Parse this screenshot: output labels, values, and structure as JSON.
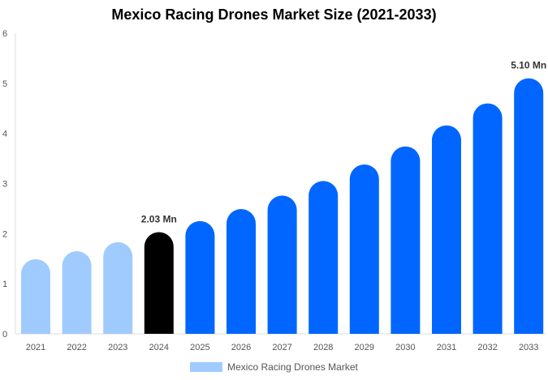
{
  "chart_data": {
    "type": "bar",
    "title": "Mexico Racing Drones Market Size (2021-2033)",
    "categories": [
      "2021",
      "2022",
      "2023",
      "2024",
      "2025",
      "2026",
      "2027",
      "2028",
      "2029",
      "2030",
      "2031",
      "2032",
      "2033"
    ],
    "series": [
      {
        "name": "Mexico Racing Drones Market",
        "values": [
          1.49,
          1.65,
          1.83,
          2.03,
          2.25,
          2.49,
          2.76,
          3.05,
          3.38,
          3.74,
          4.16,
          4.6,
          5.1
        ]
      }
    ],
    "data_labels": {
      "2024": "2.03 Mn",
      "2033": "5.10 Mn"
    },
    "ylim": [
      0,
      6
    ],
    "yticks": [
      0,
      1,
      2,
      3,
      4,
      5,
      6
    ],
    "grid": false,
    "legend_position": "bottom",
    "colors": {
      "historical": "#a0cbff",
      "base_year": "#000000",
      "forecast": "#0066ff"
    }
  }
}
